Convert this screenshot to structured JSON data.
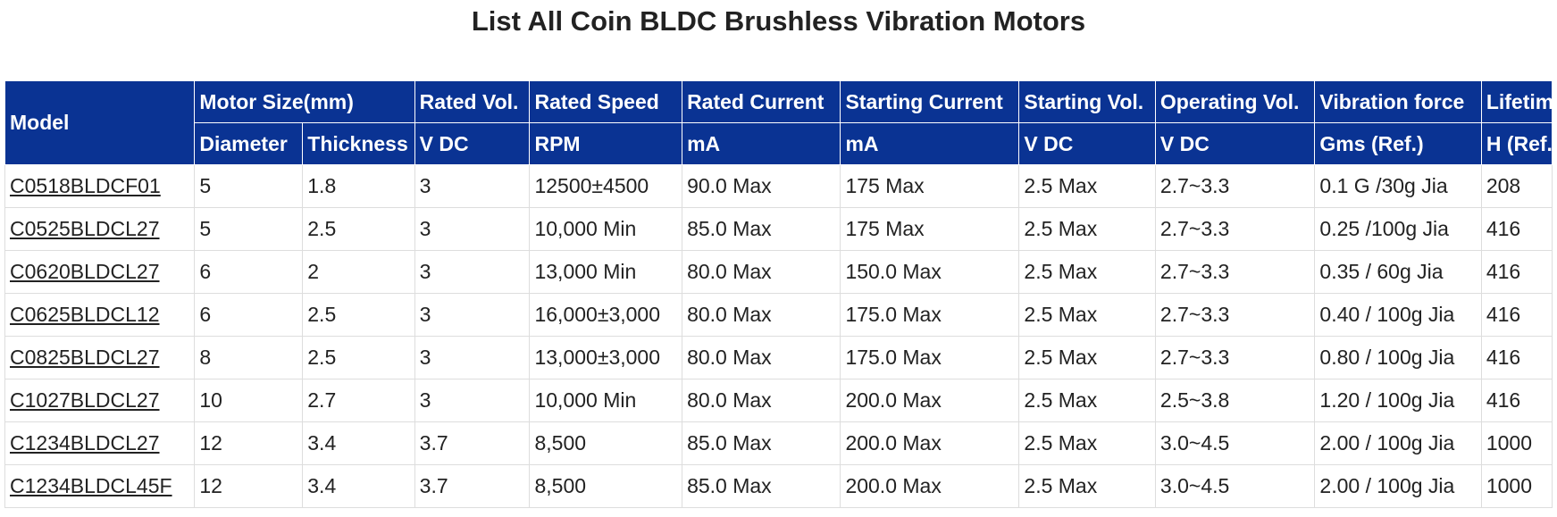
{
  "page": {
    "title": "List All Coin BLDC Brushless Vibration Motors"
  },
  "table": {
    "header_row1": {
      "model": "Model",
      "motor_size": "Motor Size(mm)",
      "rated_vol": "Rated Vol.",
      "rated_speed": "Rated Speed",
      "rated_current": "Rated Current",
      "starting_current": "Starting Current",
      "starting_vol": "Starting Vol.",
      "operating_vol": "Operating Vol.",
      "vibration_force": "Vibration force",
      "lifetime": "Lifetime"
    },
    "header_row2": {
      "diameter": "Diameter",
      "thickness": "Thickness",
      "rated_vol_unit": "V DC",
      "rated_speed_unit": "RPM",
      "rated_current_unit": "mA",
      "starting_current_unit": "mA",
      "starting_vol_unit": "V DC",
      "operating_vol_unit": "V DC",
      "vibration_force_unit": "Gms (Ref.)",
      "lifetime_unit": "H (Ref.)"
    },
    "rows": [
      [
        "C0518BLDCF01",
        "5",
        "1.8",
        "3",
        "12500±4500",
        "90.0 Max",
        "175 Max",
        "2.5 Max",
        "2.7~3.3",
        "0.1 G /30g Jia",
        "208"
      ],
      [
        "C0525BLDCL27",
        "5",
        "2.5",
        "3",
        "10,000 Min",
        "85.0 Max",
        "175 Max",
        "2.5 Max",
        "2.7~3.3",
        "0.25 /100g Jia",
        "416"
      ],
      [
        "C0620BLDCL27",
        "6",
        "2",
        "3",
        "13,000 Min",
        "80.0 Max",
        "150.0 Max",
        "2.5 Max",
        "2.7~3.3",
        "0.35 / 60g Jia",
        "416"
      ],
      [
        "C0625BLDCL12",
        "6",
        "2.5",
        "3",
        "16,000±3,000",
        "80.0 Max",
        "175.0 Max",
        "2.5 Max",
        "2.7~3.3",
        "0.40 / 100g Jia",
        "416"
      ],
      [
        "C0825BLDCL27",
        "8",
        "2.5",
        "3",
        "13,000±3,000",
        "80.0 Max",
        "175.0 Max",
        "2.5 Max",
        "2.7~3.3",
        "0.80 / 100g Jia",
        "416"
      ],
      [
        "C1027BLDCL27",
        "10",
        "2.7",
        "3",
        "10,000 Min",
        "80.0 Max",
        "200.0 Max",
        "2.5 Max",
        "2.5~3.8",
        "1.20 / 100g Jia",
        "416"
      ],
      [
        "C1234BLDCL27",
        "12",
        "3.4",
        "3.7",
        "8,500",
        "85.0 Max",
        "200.0 Max",
        "2.5 Max",
        "3.0~4.5",
        "2.00 / 100g Jia",
        "1000"
      ],
      [
        "C1234BLDCL45F",
        "12",
        "3.4",
        "3.7",
        "8,500",
        "85.0 Max",
        "200.0 Max",
        "2.5 Max",
        "3.0~4.5",
        "2.00 / 100g Jia",
        "1000"
      ]
    ]
  },
  "colors": {
    "header_bg": "#0a3393",
    "header_text": "#ffffff",
    "body_text": "#222222",
    "grid_line": "#dddddd"
  }
}
